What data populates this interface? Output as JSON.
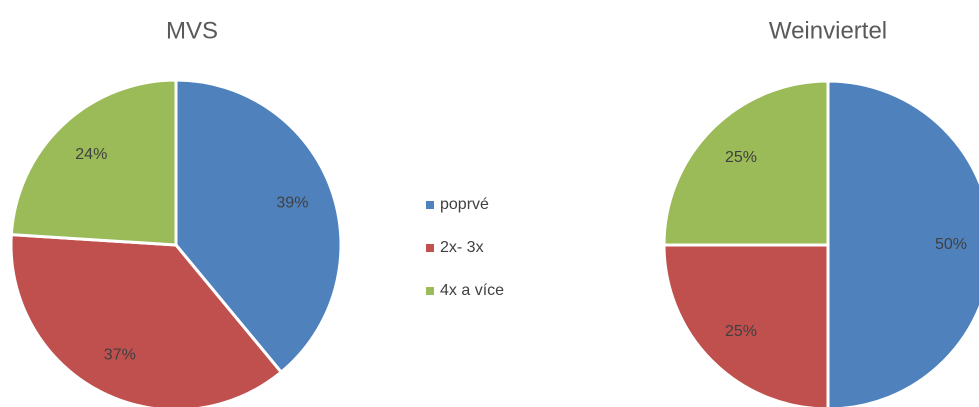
{
  "legend": {
    "labels": [
      "poprvé",
      "2x- 3x",
      "4x a více"
    ],
    "colors": [
      "#4f81bd",
      "#c0504d",
      "#9bbb59"
    ]
  },
  "chart_data": [
    {
      "type": "pie",
      "title": "MVS",
      "values": [
        39,
        37,
        24
      ],
      "value_labels": [
        "39%",
        "37%",
        "24%"
      ]
    },
    {
      "type": "pie",
      "title": "Weinviertel",
      "values": [
        50,
        25,
        25
      ],
      "value_labels": [
        "50%",
        "25%",
        "25%"
      ]
    }
  ]
}
